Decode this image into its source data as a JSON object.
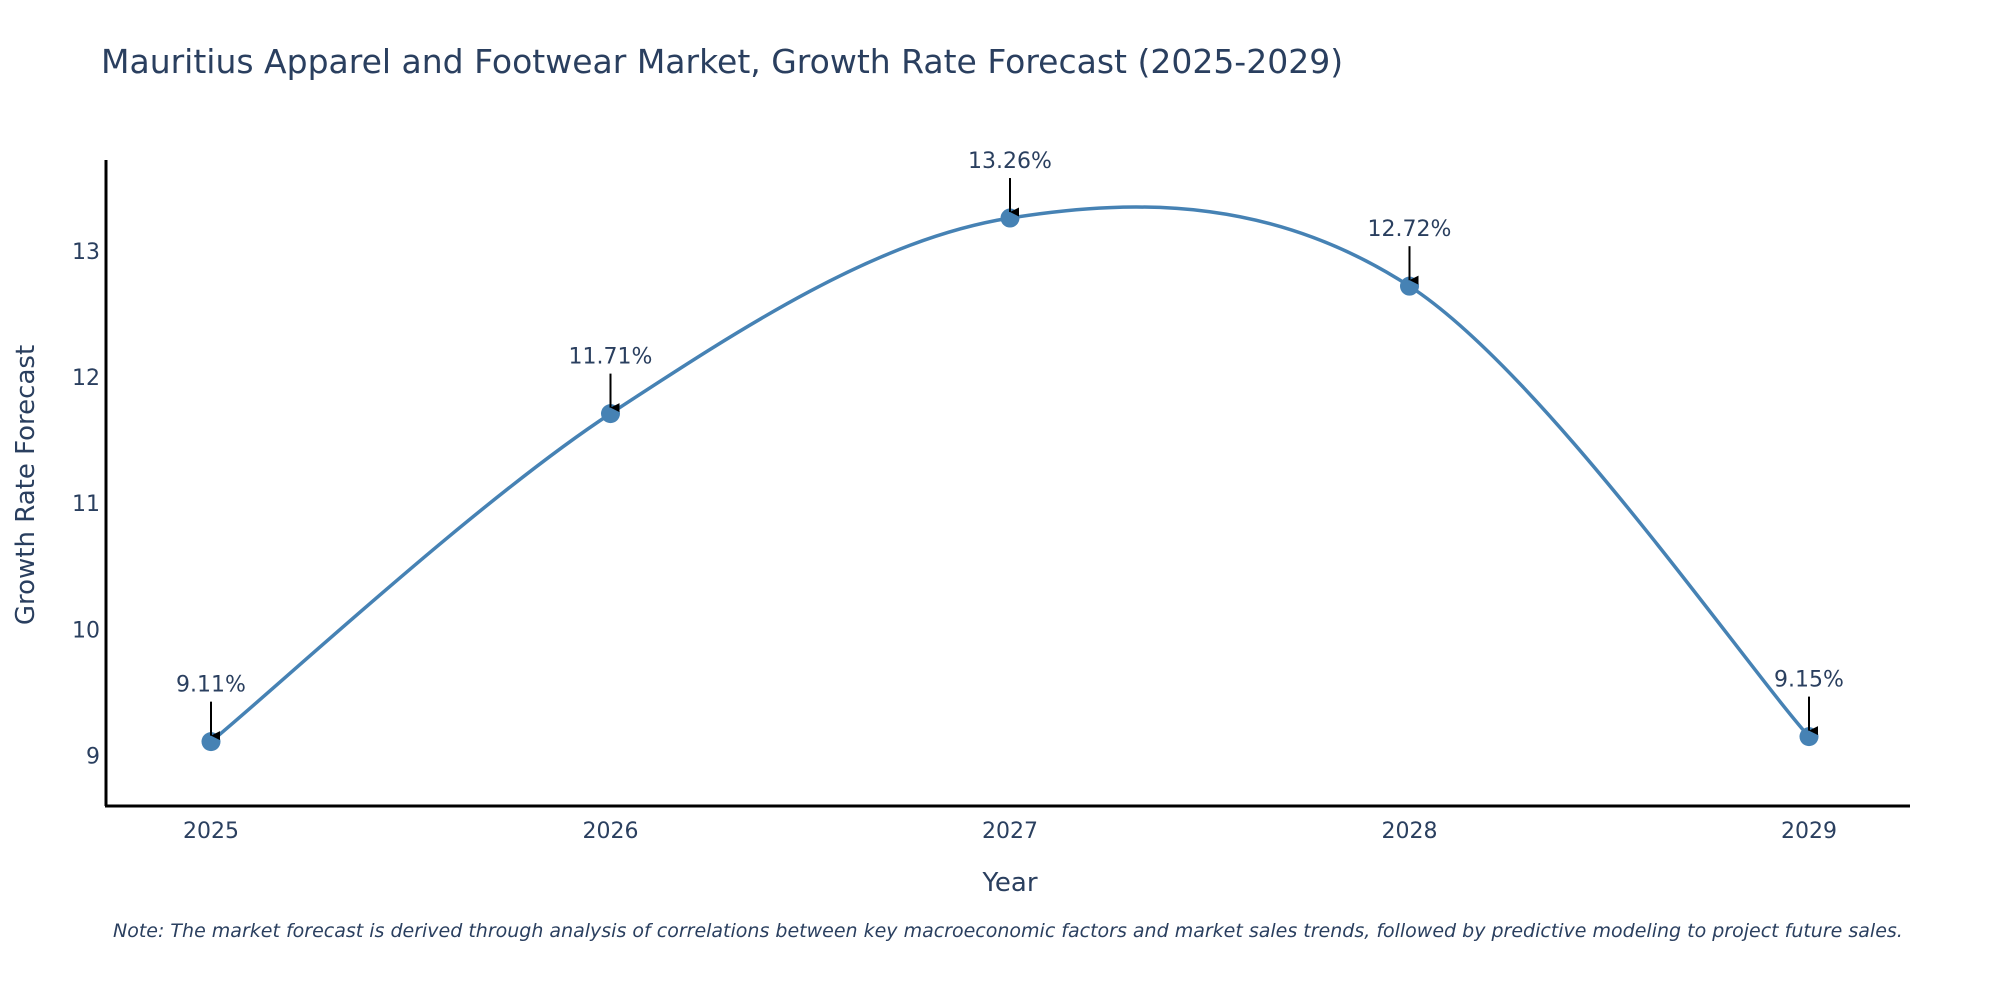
{
  "chart_data": {
    "type": "line",
    "title": "Mauritius Apparel and Footwear Market, Growth Rate Forecast (2025-2029)",
    "xlabel": "Year",
    "ylabel": "Growth Rate Forecast",
    "categories": [
      "2025",
      "2026",
      "2027",
      "2028",
      "2029"
    ],
    "series": [
      {
        "name": "Growth Rate Forecast",
        "values": [
          9.11,
          11.71,
          13.26,
          12.72,
          9.15
        ],
        "labels": [
          "9.11%",
          "11.71%",
          "13.26%",
          "12.72%",
          "9.15%"
        ],
        "color": "#4682b4"
      }
    ],
    "yticks": [
      9,
      10,
      11,
      12,
      13
    ],
    "ylim": [
      8.6,
      13.72
    ],
    "grid": false,
    "note": "Note: The market forecast is derived through analysis of correlations between key macroeconomic factors and market sales trends, followed by predictive modeling to project future sales."
  }
}
